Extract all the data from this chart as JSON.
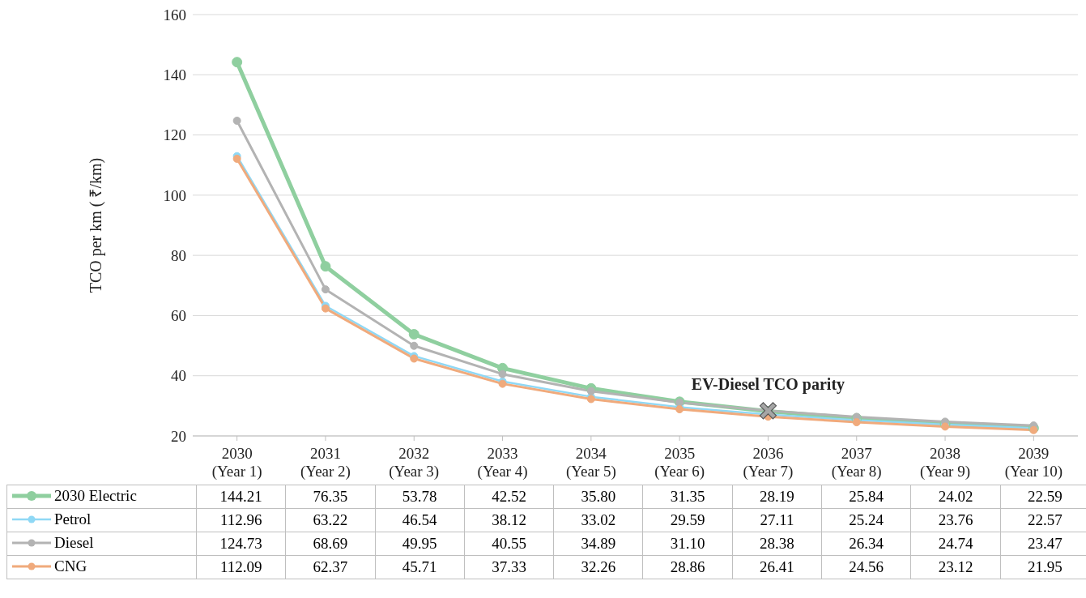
{
  "chart_data": {
    "type": "line",
    "ylabel": "TCO per km ( ₹/km)",
    "categories": [
      "2030 (Year 1)",
      "2031 (Year 2)",
      "2032 (Year 3)",
      "2033 (Year 4)",
      "2034 (Year 5)",
      "2035 (Year 6)",
      "2036 (Year 7)",
      "2037 (Year 8)",
      "2038 (Year 9)",
      "2039 (Year 10)"
    ],
    "series": [
      {
        "name": "2030 Electric",
        "color": "#8fcf9f",
        "values": [
          144.21,
          76.35,
          53.78,
          42.52,
          35.8,
          31.35,
          28.19,
          25.84,
          24.02,
          22.59
        ],
        "value_labels": [
          "144.21",
          "76.35",
          "53.78",
          "42.52",
          "35.80",
          "31.35",
          "28.19",
          "25.84",
          "24.02",
          "22.59"
        ]
      },
      {
        "name": "Petrol",
        "color": "#8fd8f5",
        "values": [
          112.96,
          63.22,
          46.54,
          38.12,
          33.02,
          29.59,
          27.11,
          25.24,
          23.76,
          22.57
        ],
        "value_labels": [
          "112.96",
          "63.22",
          "46.54",
          "38.12",
          "33.02",
          "29.59",
          "27.11",
          "25.24",
          "23.76",
          "22.57"
        ]
      },
      {
        "name": "Diesel",
        "color": "#b3b3b3",
        "values": [
          124.73,
          68.69,
          49.95,
          40.55,
          34.89,
          31.1,
          28.38,
          26.34,
          24.74,
          23.47
        ],
        "value_labels": [
          "124.73",
          "68.69",
          "49.95",
          "40.55",
          "34.89",
          "31.10",
          "28.38",
          "26.34",
          "24.74",
          "23.47"
        ]
      },
      {
        "name": "CNG",
        "color": "#f0aa7c",
        "values": [
          112.09,
          62.37,
          45.71,
          37.33,
          32.26,
          28.86,
          26.41,
          24.56,
          23.12,
          21.95
        ],
        "value_labels": [
          "112.09",
          "62.37",
          "45.71",
          "37.33",
          "32.26",
          "28.86",
          "26.41",
          "24.56",
          "23.12",
          "21.95"
        ]
      }
    ],
    "ylim": [
      20,
      160
    ],
    "yticks": [
      20,
      40,
      60,
      80,
      100,
      120,
      140,
      160
    ],
    "grid": "y",
    "legend": "bottom",
    "marker": "circle",
    "annotations": [
      {
        "text": "EV-Diesel TCO parity",
        "x": "2036 (Year 7)",
        "y": 28.38
      }
    ]
  }
}
